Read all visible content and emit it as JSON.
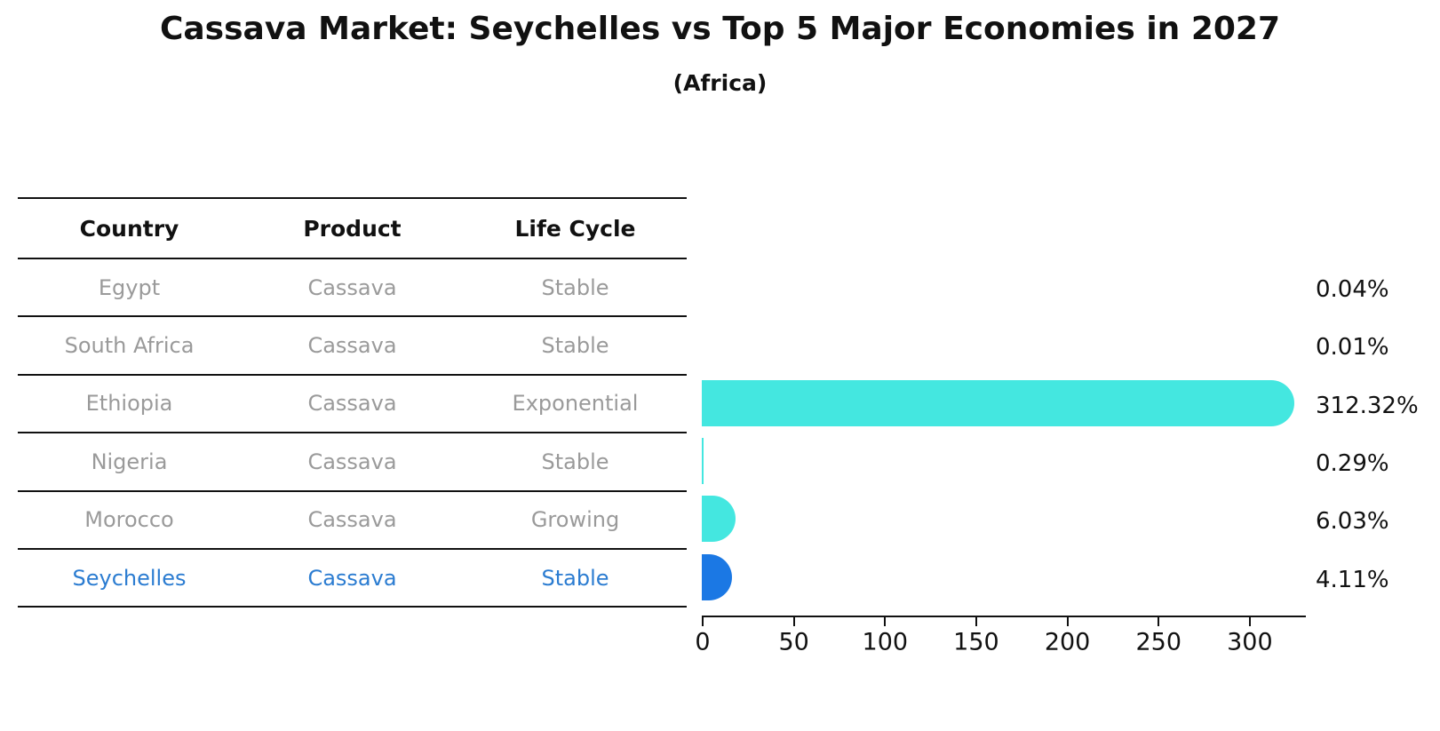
{
  "title": "Cassava Market: Seychelles vs Top 5 Major Economies in 2027",
  "subtitle": "(Africa)",
  "table": {
    "columns": [
      "Country",
      "Product",
      "Life Cycle"
    ],
    "rows": [
      {
        "country": "Egypt",
        "product": "Cassava",
        "life_cycle": "Stable",
        "highlighted": false
      },
      {
        "country": "South Africa",
        "product": "Cassava",
        "life_cycle": "Stable",
        "highlighted": false
      },
      {
        "country": "Ethiopia",
        "product": "Cassava",
        "life_cycle": "Exponential",
        "highlighted": false
      },
      {
        "country": "Nigeria",
        "product": "Cassava",
        "life_cycle": "Stable",
        "highlighted": false
      },
      {
        "country": "Morocco",
        "product": "Cassava",
        "life_cycle": "Growing",
        "highlighted": false
      },
      {
        "country": "Seychelles",
        "product": "Cassava",
        "life_cycle": "Stable",
        "highlighted": true
      }
    ]
  },
  "chart_data": {
    "type": "bar",
    "orientation": "horizontal",
    "title": "Cassava Market: Seychelles vs Top 5 Major Economies in 2027",
    "subtitle": "(Africa)",
    "categories": [
      "Egypt",
      "South Africa",
      "Ethiopia",
      "Nigeria",
      "Morocco",
      "Seychelles"
    ],
    "values": [
      0.04,
      0.01,
      312.32,
      0.29,
      6.03,
      4.11
    ],
    "value_labels": [
      "0.04%",
      "0.01%",
      "312.32%",
      "0.29%",
      "6.03%",
      "4.11%"
    ],
    "unit": "%",
    "xticks": [
      0,
      50,
      100,
      150,
      200,
      250,
      300
    ],
    "xlim": [
      0,
      331
    ],
    "grid": false,
    "legend": "none",
    "bar_colors": [
      "#44e7e0",
      "#44e7e0",
      "#44e7e0",
      "#44e7e0",
      "#44e7e0",
      "#1b78e4"
    ]
  },
  "colors": {
    "bar_teal": "#44e7e0",
    "bar_blue": "#1b78e4",
    "highlight_text_blue": "#2b7cd1",
    "row_text_gray": "#9a9a9a",
    "line_black": "#111111"
  }
}
